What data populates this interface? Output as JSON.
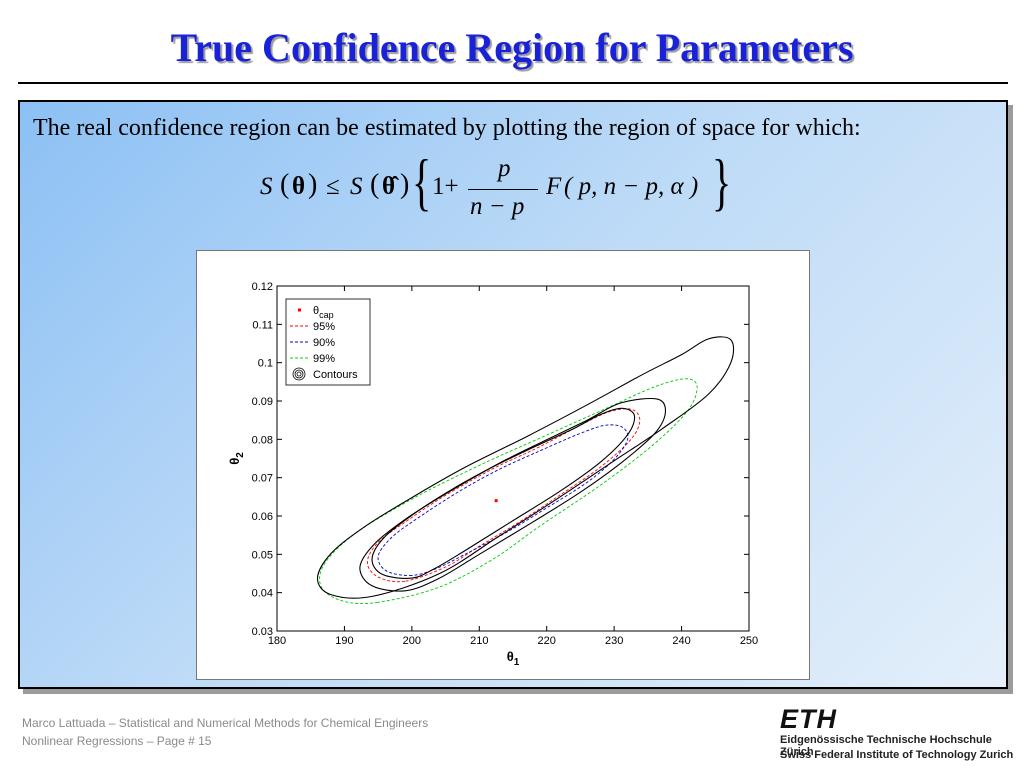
{
  "slide": {
    "title": "True Confidence Region for Parameters"
  },
  "content_box": {
    "intro_text": "The real confidence region can be estimated by plotting the region of space for which:"
  },
  "formula": {
    "lhs_S": "S",
    "open": "(",
    "theta": "θ",
    "close": ")",
    "leq": "≤",
    "rhs_S": "S",
    "theta_hat": "θ̂",
    "left_brace": "{",
    "one_plus": "1+",
    "frac_num": "p",
    "frac_den": "n − p",
    "F": "F",
    "F_args": "( p, n − p, α )",
    "right_brace": "}"
  },
  "chart_data": {
    "type": "contour",
    "xlabel": "θ",
    "xlabel_sub": "1",
    "ylabel": "θ",
    "ylabel_sub": "2",
    "xlim": [
      180,
      250
    ],
    "ylim": [
      0.03,
      0.12
    ],
    "xticks": [
      "180",
      "190",
      "200",
      "210",
      "220",
      "230",
      "240",
      "250"
    ],
    "yticks": [
      "0.03",
      "0.04",
      "0.05",
      "0.06",
      "0.07",
      "0.08",
      "0.09",
      "0.1",
      "0.11",
      "0.12"
    ],
    "legend_position": "top-left",
    "legend": [
      {
        "label": "θ",
        "sub": "cap",
        "kind": "marker",
        "color": "#ff0000"
      },
      {
        "label": "95%",
        "kind": "dash",
        "color": "#ff0000"
      },
      {
        "label": "90%",
        "kind": "dash",
        "color": "#0000cc"
      },
      {
        "label": "99%",
        "kind": "dash",
        "color": "#00cc00"
      },
      {
        "label": "Contours",
        "kind": "contour",
        "color": "#000000"
      }
    ],
    "theta_cap": {
      "x": 212.5,
      "y": 0.064
    },
    "regions": [
      {
        "name": "99%",
        "color": "#00cc00",
        "style": "dashed",
        "points": [
          [
            195,
            0.0375
          ],
          [
            189.8,
            0.0378
          ],
          [
            186.6,
            0.0414
          ],
          [
            187,
            0.0474
          ],
          [
            191.5,
            0.0553
          ],
          [
            200,
            0.0644
          ],
          [
            210,
            0.0732
          ],
          [
            220,
            0.0811
          ],
          [
            229,
            0.0882
          ],
          [
            236,
            0.0937
          ],
          [
            240.6,
            0.0958
          ],
          [
            242.3,
            0.0938
          ],
          [
            241,
            0.0877
          ],
          [
            236,
            0.0789
          ],
          [
            228,
            0.0681
          ],
          [
            219,
            0.0574
          ],
          [
            212,
            0.0487
          ],
          [
            204,
            0.0414
          ]
        ]
      },
      {
        "name": "95%",
        "color": "#ff0000",
        "style": "dashed",
        "points": [
          [
            199,
            0.043
          ],
          [
            195.1,
            0.044
          ],
          [
            193.4,
            0.0478
          ],
          [
            195,
            0.0531
          ],
          [
            199.5,
            0.059
          ],
          [
            205,
            0.0654
          ],
          [
            212,
            0.0723
          ],
          [
            219,
            0.0781
          ],
          [
            225,
            0.0837
          ],
          [
            229.3,
            0.0872
          ],
          [
            232.6,
            0.0878
          ],
          [
            233.8,
            0.085
          ],
          [
            232.5,
            0.08
          ],
          [
            228,
            0.0728
          ],
          [
            222,
            0.0655
          ],
          [
            216,
            0.0585
          ],
          [
            210,
            0.0521
          ],
          [
            205,
            0.0467
          ]
        ]
      },
      {
        "name": "90%",
        "color": "#0000cc",
        "style": "dashed",
        "points": [
          [
            200,
            0.0445
          ],
          [
            196.3,
            0.0456
          ],
          [
            195,
            0.0494
          ],
          [
            197,
            0.0544
          ],
          [
            201,
            0.0596
          ],
          [
            207,
            0.0664
          ],
          [
            213,
            0.0722
          ],
          [
            219,
            0.077
          ],
          [
            224.5,
            0.0812
          ],
          [
            228.5,
            0.0836
          ],
          [
            231.2,
            0.0832
          ],
          [
            232,
            0.08
          ],
          [
            230,
            0.0748
          ],
          [
            226,
            0.0688
          ],
          [
            220,
            0.0621
          ],
          [
            214,
            0.0557
          ],
          [
            208,
            0.0501
          ],
          [
            203.5,
            0.0462
          ]
        ]
      },
      {
        "name": "contour-outer",
        "color": "#000000",
        "style": "solid",
        "points": [
          [
            194,
            0.039
          ],
          [
            188,
            0.0395
          ],
          [
            186,
            0.0437
          ],
          [
            188,
            0.0502
          ],
          [
            193,
            0.0572
          ],
          [
            200,
            0.0648
          ],
          [
            208,
            0.0728
          ],
          [
            217,
            0.0807
          ],
          [
            226,
            0.089
          ],
          [
            234,
            0.0967
          ],
          [
            240,
            0.1021
          ],
          [
            244,
            0.1062
          ],
          [
            247.3,
            0.106
          ],
          [
            247.3,
            0.1
          ],
          [
            244,
            0.0918
          ],
          [
            237,
            0.0826
          ],
          [
            230,
            0.0744
          ],
          [
            222,
            0.065
          ],
          [
            213,
            0.0548
          ],
          [
            204,
            0.0449
          ]
        ]
      },
      {
        "name": "contour-middle",
        "color": "#000000",
        "style": "solid",
        "points": [
          [
            199,
            0.0405
          ],
          [
            194.1,
            0.0418
          ],
          [
            192.3,
            0.0466
          ],
          [
            194.5,
            0.0528
          ],
          [
            199.5,
            0.0597
          ],
          [
            206,
            0.0668
          ],
          [
            213,
            0.0738
          ],
          [
            220,
            0.0799
          ],
          [
            226,
            0.085
          ],
          [
            231,
            0.0895
          ],
          [
            236.4,
            0.0905
          ],
          [
            237.6,
            0.087
          ],
          [
            236,
            0.0815
          ],
          [
            231,
            0.0738
          ],
          [
            225,
            0.0662
          ],
          [
            218,
            0.0585
          ],
          [
            210,
            0.05
          ],
          [
            204,
            0.0437
          ]
        ]
      },
      {
        "name": "contour-inner",
        "color": "#000000",
        "style": "solid",
        "points": [
          [
            200,
            0.0438
          ],
          [
            195.6,
            0.0448
          ],
          [
            194.1,
            0.0489
          ],
          [
            196,
            0.0546
          ],
          [
            200.5,
            0.0608
          ],
          [
            206,
            0.067
          ],
          [
            212,
            0.0728
          ],
          [
            218,
            0.0779
          ],
          [
            224,
            0.0828
          ],
          [
            228,
            0.0865
          ],
          [
            231.2,
            0.0881
          ],
          [
            233,
            0.0862
          ],
          [
            232,
            0.0812
          ],
          [
            228,
            0.0741
          ],
          [
            222,
            0.0665
          ],
          [
            215,
            0.0588
          ],
          [
            208,
            0.0511
          ],
          [
            203.5,
            0.0464
          ]
        ]
      }
    ]
  },
  "footer": {
    "author_line": "Marco Lattuada – Statistical and Numerical Methods for Chemical Engineers",
    "course_line": "Nonlinear Regressions – Page #  15"
  },
  "logo": {
    "name": "ETH",
    "line1": "Eidgenössische Technische Hochschule Zürich",
    "line2": "Swiss Federal Institute of Technology Zurich"
  }
}
